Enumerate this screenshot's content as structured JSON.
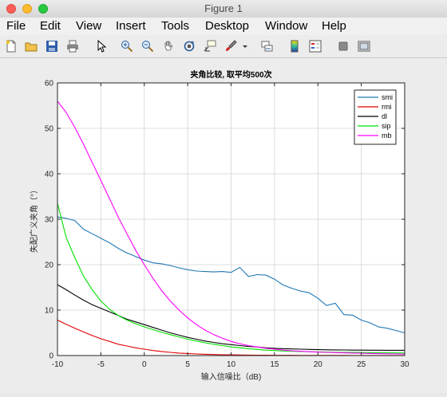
{
  "window": {
    "title": "Figure 1"
  },
  "menu": [
    "File",
    "Edit",
    "View",
    "Insert",
    "Tools",
    "Desktop",
    "Window",
    "Help"
  ],
  "toolbar_icons": [
    "new-file-icon",
    "open-folder-icon",
    "save-icon",
    "print-icon",
    "pointer-icon",
    "zoom-in-icon",
    "zoom-out-icon",
    "pan-hand-icon",
    "rotate-3d-icon",
    "data-cursor-icon",
    "brush-icon",
    "dropdown-arrow-icon",
    "link-plot-icon",
    "colorbar-icon",
    "legend-icon",
    "hide-plot-tools-icon",
    "show-plot-tools-icon"
  ],
  "chart_data": {
    "type": "line",
    "title": "夹角比较, 取平均500次",
    "xlabel": "输入信噪比（dB)",
    "ylabel": "失配广义夹角（°）",
    "xlim": [
      -10,
      30
    ],
    "ylim": [
      0,
      60
    ],
    "xticks": [
      -10,
      -5,
      0,
      5,
      10,
      15,
      20,
      25,
      30
    ],
    "yticks": [
      0,
      10,
      20,
      30,
      40,
      50,
      60
    ],
    "grid": true,
    "legend_position": "top-right",
    "x": [
      -10,
      -9,
      -8,
      -7,
      -6,
      -5,
      -4,
      -3,
      -2,
      -1,
      0,
      1,
      2,
      3,
      4,
      5,
      6,
      7,
      8,
      9,
      10,
      11,
      12,
      13,
      14,
      15,
      16,
      17,
      18,
      19,
      20,
      21,
      22,
      23,
      24,
      25,
      26,
      27,
      28,
      29,
      30
    ],
    "series": [
      {
        "name": "smi",
        "color": "#1f77b4",
        "values": [
          30.5,
          30.2,
          29.7,
          27.8,
          26.8,
          25.8,
          24.8,
          23.6,
          22.6,
          21.8,
          21.0,
          20.4,
          20.2,
          19.8,
          19.3,
          18.9,
          18.6,
          18.5,
          18.4,
          18.5,
          18.3,
          19.4,
          17.4,
          17.8,
          17.7,
          16.8,
          15.5,
          14.8,
          14.2,
          13.8,
          12.6,
          11.0,
          11.5,
          9.0,
          8.9,
          7.8,
          7.2,
          6.3,
          6.0,
          5.5,
          5.0
        ]
      },
      {
        "name": "rmi",
        "color": "#e00000",
        "values": [
          7.8,
          6.9,
          6.0,
          5.2,
          4.4,
          3.7,
          3.1,
          2.5,
          2.1,
          1.7,
          1.4,
          1.1,
          0.9,
          0.7,
          0.55,
          0.45,
          0.35,
          0.28,
          0.22,
          0.18,
          0.15,
          0.12,
          0.1,
          0.08,
          0.07,
          0.06,
          0.05,
          0.05,
          0.04,
          0.04,
          0.03,
          0.03,
          0.03,
          0.03,
          0.02,
          0.02,
          0.02,
          0.02,
          0.02,
          0.02,
          0.02
        ]
      },
      {
        "name": "dl",
        "color": "#000000",
        "values": [
          15.6,
          14.5,
          13.3,
          12.2,
          11.2,
          10.4,
          9.6,
          8.8,
          8.0,
          7.4,
          6.8,
          6.2,
          5.6,
          5.0,
          4.5,
          4.0,
          3.6,
          3.2,
          2.9,
          2.6,
          2.4,
          2.2,
          2.0,
          1.9,
          1.7,
          1.6,
          1.5,
          1.45,
          1.4,
          1.35,
          1.3,
          1.27,
          1.25,
          1.22,
          1.2,
          1.2,
          1.18,
          1.17,
          1.16,
          1.15,
          1.15
        ]
      },
      {
        "name": "sip",
        "color": "#00e000",
        "values": [
          33.5,
          26.0,
          21.5,
          17.5,
          14.5,
          12.0,
          10.2,
          8.8,
          7.8,
          7.0,
          6.3,
          5.7,
          5.1,
          4.6,
          4.1,
          3.6,
          3.2,
          2.8,
          2.5,
          2.2,
          1.9,
          1.7,
          1.5,
          1.35,
          1.2,
          1.1,
          1.0,
          0.95,
          0.9,
          0.85,
          0.8,
          0.75,
          0.72,
          0.7,
          0.68,
          0.66,
          0.64,
          0.62,
          0.6,
          0.58,
          0.56
        ]
      },
      {
        "name": "mb",
        "color": "#ff00ff",
        "values": [
          56.0,
          53.5,
          50.2,
          46.5,
          42.5,
          38.5,
          34.5,
          30.5,
          26.8,
          23.2,
          20.0,
          17.0,
          14.3,
          12.0,
          10.0,
          8.3,
          6.8,
          5.6,
          4.6,
          3.8,
          3.1,
          2.6,
          2.2,
          1.9,
          1.6,
          1.4,
          1.2,
          1.05,
          0.95,
          0.85,
          0.75,
          0.7,
          0.65,
          0.6,
          0.55,
          0.5,
          0.46,
          0.42,
          0.38,
          0.35,
          0.32
        ]
      }
    ]
  }
}
